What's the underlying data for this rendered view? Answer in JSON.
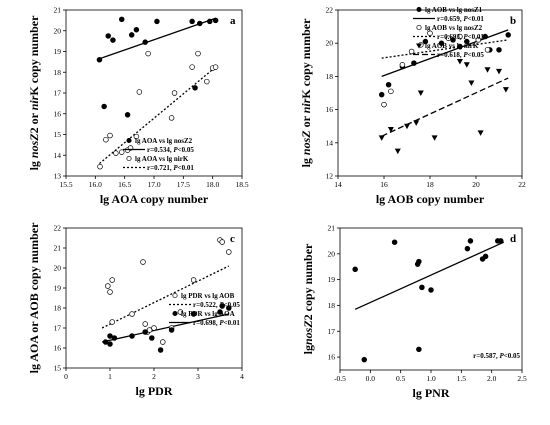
{
  "chart_data": [
    {
      "panel": "a",
      "type": "scatter",
      "xlabel": "lg AOA copy number",
      "ylabel_parts": [
        {
          "t": "lg "
        },
        {
          "t": "nosZ",
          "i": true
        },
        {
          "t": "2 or "
        },
        {
          "t": "nir",
          "i": true
        },
        {
          "t": "K copy number"
        }
      ],
      "xlim": [
        15.5,
        18.5
      ],
      "ylim": [
        13,
        21
      ],
      "xticks": [
        "15.5",
        "16.0",
        "16.5",
        "17.0",
        "17.5",
        "18.0",
        "18.5"
      ],
      "yticks": [
        "13",
        "14",
        "15",
        "16",
        "17",
        "18",
        "19",
        "20",
        "21"
      ],
      "series": [
        {
          "name": "lg AOA vs lg nosZ2",
          "marker": "filled-circle",
          "line": "solid",
          "points": [
            [
              16.07,
              18.6
            ],
            [
              16.15,
              16.35
            ],
            [
              16.22,
              19.75
            ],
            [
              16.3,
              19.55
            ],
            [
              16.45,
              20.55
            ],
            [
              16.55,
              15.95
            ],
            [
              16.62,
              19.8
            ],
            [
              16.7,
              20.05
            ],
            [
              16.85,
              19.45
            ],
            [
              17.05,
              20.45
            ],
            [
              17.65,
              20.45
            ],
            [
              17.7,
              17.25
            ],
            [
              17.78,
              20.35
            ],
            [
              17.95,
              20.45
            ],
            [
              18.05,
              20.5
            ]
          ],
          "fit": [
            [
              16.07,
              18.65
            ],
            [
              18.05,
              20.6
            ]
          ],
          "stat": "r=0.534, P<0.05"
        },
        {
          "name": "lg AOA vs lg nirK",
          "marker": "open-circle",
          "line": "dotted",
          "points": [
            [
              16.08,
              13.45
            ],
            [
              16.18,
              14.75
            ],
            [
              16.25,
              14.95
            ],
            [
              16.35,
              14.1
            ],
            [
              16.45,
              14.15
            ],
            [
              16.55,
              14.25
            ],
            [
              16.6,
              14.35
            ],
            [
              16.7,
              14.9
            ],
            [
              16.75,
              17.05
            ],
            [
              16.9,
              18.9
            ],
            [
              17.3,
              15.8
            ],
            [
              17.65,
              18.25
            ],
            [
              17.75,
              18.9
            ],
            [
              17.9,
              17.55
            ],
            [
              18.0,
              18.2
            ],
            [
              18.05,
              18.25
            ],
            [
              17.35,
              17.0
            ]
          ],
          "fit": [
            [
              16.07,
              13.6
            ],
            [
              18.05,
              18.25
            ]
          ],
          "stat": "r=0.721, P<0.01"
        }
      ]
    },
    {
      "panel": "b",
      "type": "scatter",
      "xlabel": "lg AOB copy number",
      "ylabel_parts": [
        {
          "t": "lg "
        },
        {
          "t": "nosZ",
          "i": true
        },
        {
          "t": " or "
        },
        {
          "t": "nir",
          "i": true
        },
        {
          "t": "K copy number"
        }
      ],
      "xlim": [
        14,
        22
      ],
      "ylim": [
        12,
        22
      ],
      "xticks": [
        "14",
        "16",
        "18",
        "20",
        "22"
      ],
      "yticks": [
        "12",
        "14",
        "16",
        "18",
        "20",
        "22"
      ],
      "series": [
        {
          "name": "lg AOB vs lg nosZ1",
          "marker": "filled-circle",
          "line": "solid",
          "points": [
            [
              15.9,
              16.9
            ],
            [
              16.2,
              17.5
            ],
            [
              16.8,
              18.6
            ],
            [
              17.3,
              18.8
            ],
            [
              17.8,
              20.1
            ],
            [
              18.5,
              20.0
            ],
            [
              19.0,
              20.2
            ],
            [
              19.3,
              19.8
            ],
            [
              19.6,
              20.1
            ],
            [
              20.4,
              20.4
            ],
            [
              20.6,
              19.6
            ],
            [
              21.0,
              19.6
            ],
            [
              21.4,
              20.5
            ]
          ],
          "fit": [
            [
              15.9,
              18.0
            ],
            [
              21.4,
              20.8
            ]
          ],
          "stat": "r=0.659, P<0.01"
        },
        {
          "name": "lg AOB vs lg nosZ2",
          "marker": "open-circle",
          "line": "dotted",
          "points": [
            [
              16.0,
              16.3
            ],
            [
              16.3,
              17.1
            ],
            [
              16.8,
              18.7
            ],
            [
              17.2,
              19.5
            ],
            [
              17.6,
              19.9
            ],
            [
              18.0,
              20.6
            ],
            [
              18.8,
              20.3
            ],
            [
              19.3,
              20.4
            ],
            [
              20.1,
              20.2
            ],
            [
              20.5,
              19.6
            ]
          ],
          "fit": [
            [
              15.9,
              19.1
            ],
            [
              21.4,
              20.2
            ]
          ],
          "stat": "r=0.693, P<0.01"
        },
        {
          "name": "lg AOB vs lg nirK",
          "marker": "filled-triangle-down",
          "line": "dashed",
          "points": [
            [
              15.9,
              14.3
            ],
            [
              16.3,
              14.8
            ],
            [
              16.6,
              13.5
            ],
            [
              17.0,
              15.0
            ],
            [
              17.4,
              15.2
            ],
            [
              17.6,
              17.0
            ],
            [
              18.2,
              14.3
            ],
            [
              19.3,
              18.9
            ],
            [
              19.6,
              18.7
            ],
            [
              19.8,
              17.6
            ],
            [
              20.2,
              14.6
            ],
            [
              20.5,
              18.4
            ],
            [
              21.0,
              18.3
            ],
            [
              21.3,
              17.2
            ]
          ],
          "fit": [
            [
              15.9,
              14.4
            ],
            [
              21.4,
              17.9
            ]
          ],
          "stat": "r=0.618, P<0.05"
        }
      ]
    },
    {
      "panel": "c",
      "type": "scatter",
      "xlabel": "lg PDR",
      "ylabel": "lg AOA or AOB copy number",
      "xlim": [
        0,
        4
      ],
      "ylim": [
        15,
        22
      ],
      "xticks": [
        "0",
        "1",
        "2",
        "3",
        "4"
      ],
      "yticks": [
        "15",
        "16",
        "17",
        "18",
        "19",
        "20",
        "21",
        "22"
      ],
      "series": [
        {
          "name": "lg PDR vs lg AOB",
          "marker": "open-circle",
          "line": "dotted",
          "points": [
            [
              0.95,
              19.1
            ],
            [
              1.0,
              18.8
            ],
            [
              1.05,
              19.4
            ],
            [
              1.05,
              17.3
            ],
            [
              1.5,
              17.7
            ],
            [
              1.75,
              20.3
            ],
            [
              1.8,
              17.2
            ],
            [
              1.85,
              16.8
            ],
            [
              1.9,
              16.9
            ],
            [
              2.0,
              17.0
            ],
            [
              2.2,
              16.3
            ],
            [
              2.4,
              17.0
            ],
            [
              2.6,
              17.8
            ],
            [
              2.9,
              19.4
            ],
            [
              3.5,
              21.4
            ],
            [
              3.55,
              21.3
            ],
            [
              3.7,
              20.8
            ]
          ],
          "fit": [
            [
              0.82,
              17.0
            ],
            [
              3.7,
              20.1
            ]
          ],
          "stat": "r=0.522, P<0.05"
        },
        {
          "name": "lg PDR vs lg AOA",
          "marker": "filled-circle",
          "line": "solid",
          "points": [
            [
              0.9,
              16.3
            ],
            [
              1.0,
              16.2
            ],
            [
              1.0,
              16.6
            ],
            [
              1.1,
              16.5
            ],
            [
              1.5,
              16.6
            ],
            [
              1.8,
              16.8
            ],
            [
              1.95,
              16.5
            ],
            [
              2.15,
              15.9
            ],
            [
              2.4,
              16.9
            ],
            [
              2.9,
              17.7
            ],
            [
              3.5,
              17.8
            ],
            [
              3.55,
              18.1
            ],
            [
              3.7,
              18.0
            ]
          ],
          "fit": [
            [
              0.82,
              16.3
            ],
            [
              3.7,
              17.7
            ]
          ],
          "stat": "r=0.698, P<0.01"
        }
      ]
    },
    {
      "panel": "d",
      "type": "scatter",
      "xlabel": "lg PNR",
      "ylabel_parts": [
        {
          "t": "lg"
        },
        {
          "t": "nosZ",
          "i": true
        },
        {
          "t": "2 copy number"
        }
      ],
      "xlim": [
        -0.5,
        2.5
      ],
      "ylim": [
        15.5,
        21
      ],
      "xticks": [
        "-0.5",
        "0.0",
        "0.5",
        "1.0",
        "1.5",
        "2.0",
        "2.5"
      ],
      "yticks": [
        "16",
        "17",
        "18",
        "19",
        "20",
        "21"
      ],
      "series": [
        {
          "name": "",
          "marker": "filled-circle",
          "line": "solid",
          "points": [
            [
              -0.25,
              19.4
            ],
            [
              -0.1,
              15.9
            ],
            [
              0.4,
              20.45
            ],
            [
              0.78,
              19.6
            ],
            [
              0.8,
              19.7
            ],
            [
              0.8,
              16.3
            ],
            [
              0.85,
              18.7
            ],
            [
              1.0,
              18.6
            ],
            [
              1.6,
              20.2
            ],
            [
              1.65,
              20.5
            ],
            [
              1.85,
              19.8
            ],
            [
              1.9,
              19.9
            ],
            [
              2.1,
              20.5
            ],
            [
              2.15,
              20.5
            ]
          ],
          "fit": [
            [
              -0.25,
              17.85
            ],
            [
              2.2,
              20.45
            ]
          ],
          "stat": "r=0.587, P<0.05"
        }
      ]
    }
  ]
}
